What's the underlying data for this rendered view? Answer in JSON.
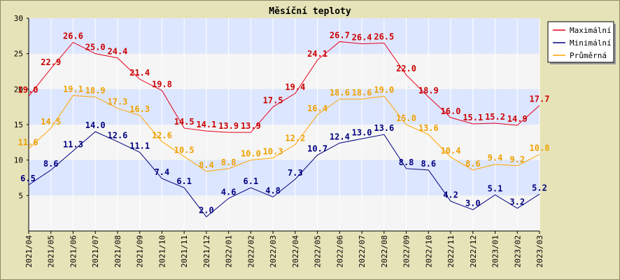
{
  "chart_data": {
    "type": "line",
    "title": "Měsíční teploty",
    "xlabel": "",
    "ylabel": "",
    "ylim": [
      0,
      30
    ],
    "yticks": [
      5,
      10,
      15,
      20,
      25,
      30
    ],
    "grid": true,
    "legend_position": "top-right",
    "categories": [
      "2021/04",
      "2021/05",
      "2021/06",
      "2021/07",
      "2021/08",
      "2021/09",
      "2021/10",
      "2021/11",
      "2021/12",
      "2022/01",
      "2022/02",
      "2022/03",
      "2022/04",
      "2022/05",
      "2022/06",
      "2022/07",
      "2022/08",
      "2022/09",
      "2022/10",
      "2022/11",
      "2022/12",
      "2023/01",
      "2023/02",
      "2023/03"
    ],
    "series": [
      {
        "name": "Maximální",
        "color": "#e8001c",
        "label_color": "#cc0000",
        "values": [
          19.0,
          22.9,
          26.6,
          25.0,
          24.4,
          21.4,
          19.8,
          14.5,
          14.1,
          13.9,
          13.9,
          17.5,
          19.4,
          24.1,
          26.7,
          26.4,
          26.5,
          22.0,
          18.9,
          16.0,
          15.1,
          15.2,
          14.9,
          17.7
        ]
      },
      {
        "name": "Minimální",
        "color": "#000080",
        "label_color": "#000080",
        "values": [
          6.5,
          8.6,
          11.3,
          14.0,
          12.6,
          11.1,
          7.4,
          6.1,
          2.0,
          4.6,
          6.1,
          4.8,
          7.3,
          10.7,
          12.4,
          13.0,
          13.6,
          8.8,
          8.6,
          4.2,
          3.0,
          5.1,
          3.2,
          5.2
        ]
      },
      {
        "name": "Průměrná",
        "color": "#ffa500",
        "label_color": "#f0a000",
        "values": [
          11.6,
          14.5,
          19.1,
          18.9,
          17.3,
          16.3,
          12.6,
          10.5,
          8.4,
          8.8,
          10.0,
          10.3,
          12.2,
          16.4,
          18.6,
          18.6,
          19.0,
          15.0,
          13.6,
          10.4,
          8.6,
          9.4,
          9.2,
          10.8
        ]
      }
    ],
    "colors": {
      "background": "#e6e3b8",
      "plot_band_blue": "#dde6ff",
      "plot_band_light": "#f5f5f5",
      "vertical_grid": "#ffffff"
    }
  }
}
